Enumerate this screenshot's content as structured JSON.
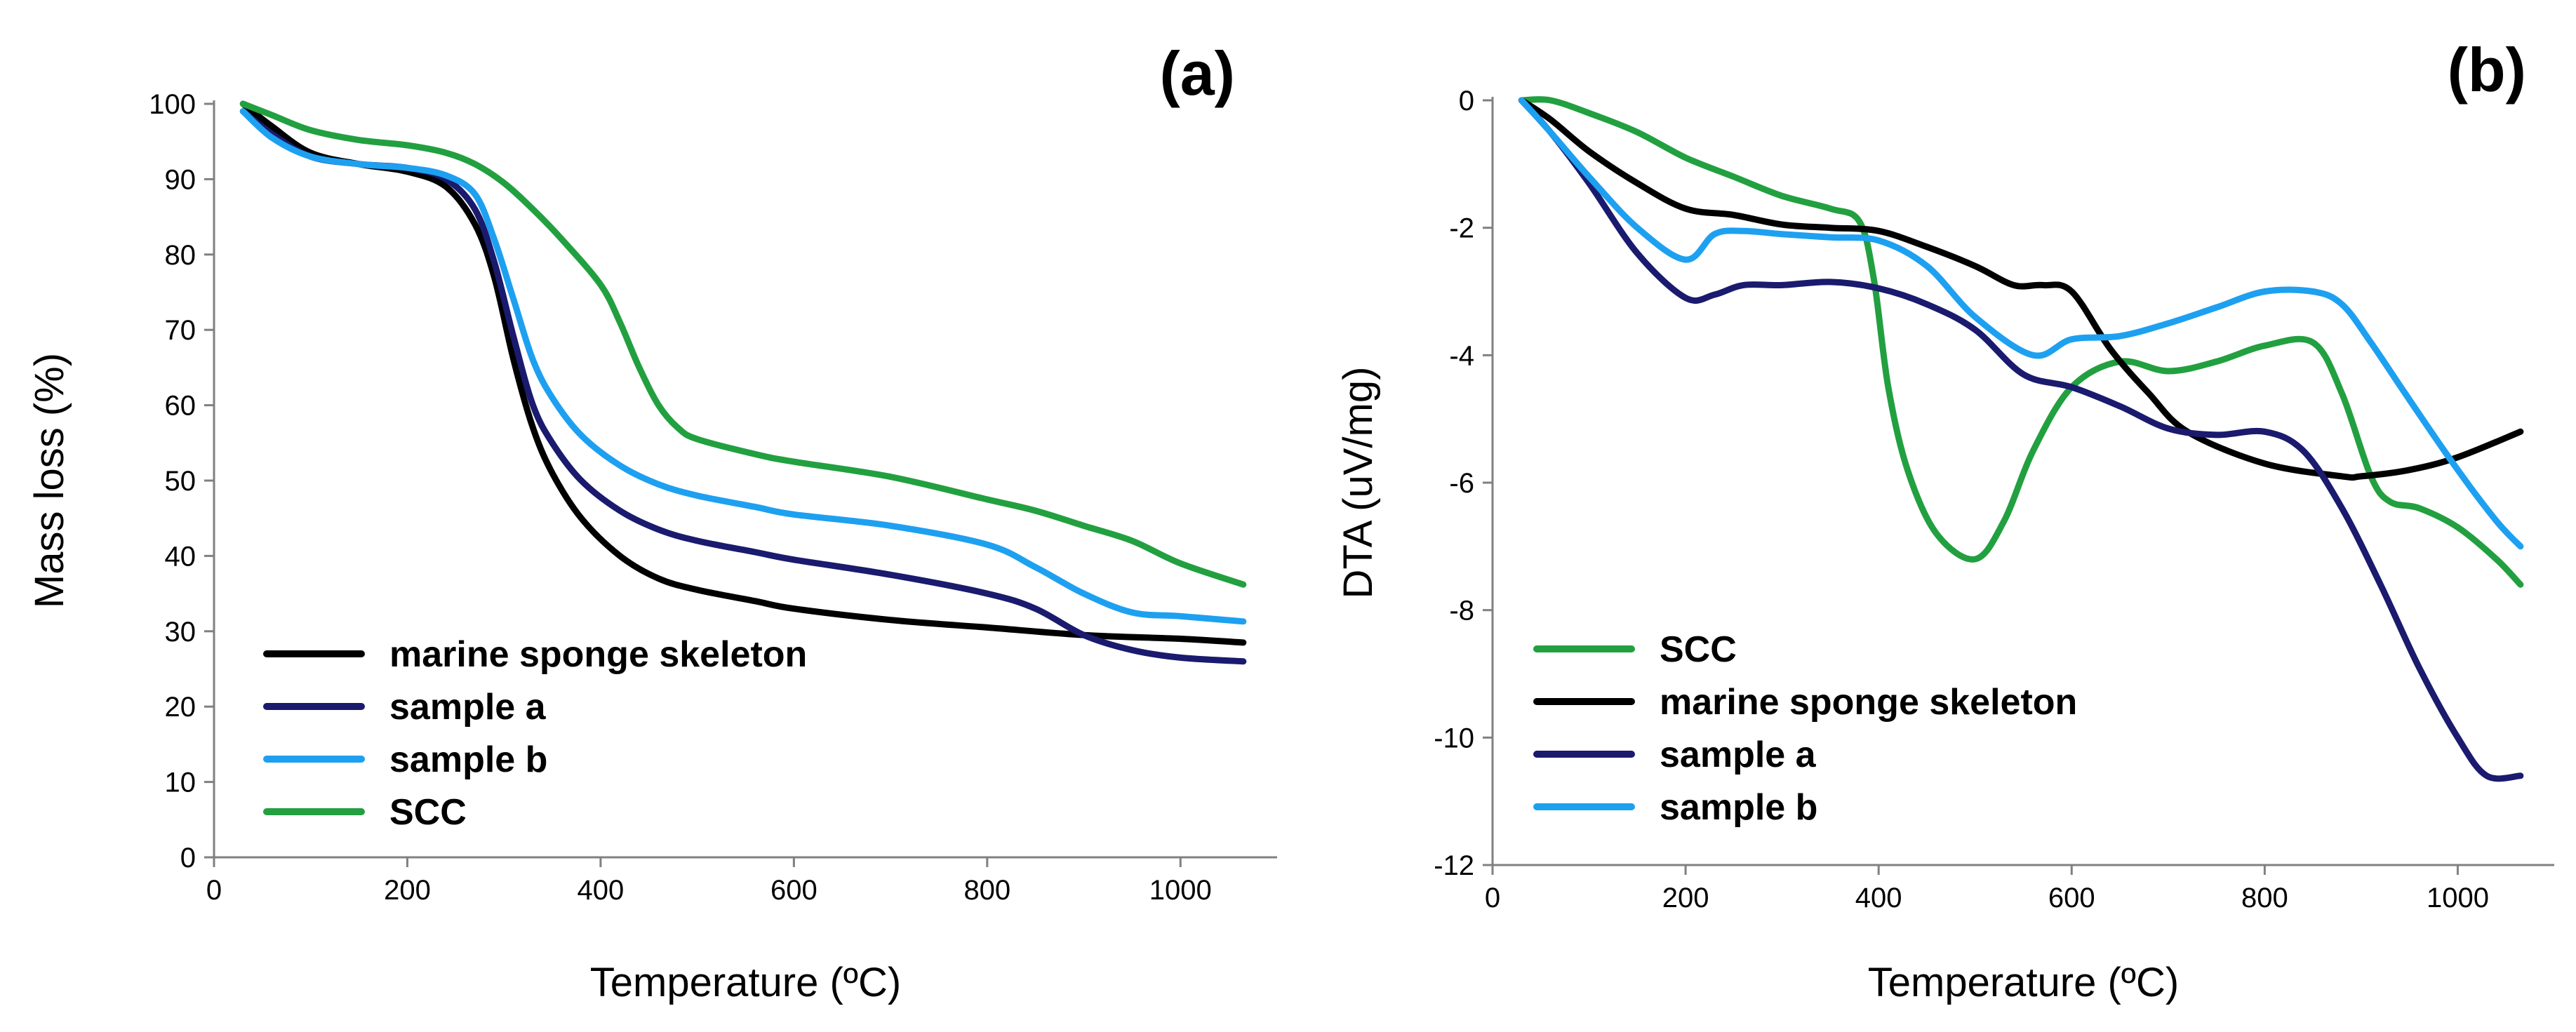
{
  "chart_data": [
    {
      "type": "line",
      "panel_label": "(a)",
      "xlabel": "Temperature (ºC)",
      "ylabel": "Mass loss (%)",
      "xlim": [
        0,
        1100
      ],
      "ylim": [
        0,
        100
      ],
      "x_ticks": [
        "0",
        "200",
        "400",
        "600",
        "800",
        "1000"
      ],
      "y_ticks": [
        "0",
        "10",
        "20",
        "30",
        "40",
        "50",
        "60",
        "70",
        "80",
        "90",
        "100"
      ],
      "grid": false,
      "legend_position": "lower-left",
      "legend_order": [
        "marine sponge skeleton",
        "sample a",
        "sample b",
        "SCC"
      ],
      "series": [
        {
          "name": "marine sponge skeleton",
          "color": "#000000",
          "x": [
            30,
            60,
            100,
            150,
            200,
            240,
            270,
            290,
            310,
            330,
            350,
            380,
            420,
            460,
            500,
            560,
            600,
            700,
            800,
            900,
            1000,
            1065
          ],
          "y": [
            100,
            97,
            93.5,
            92,
            91,
            89,
            84,
            77,
            66,
            57,
            51,
            45,
            40,
            37,
            35.5,
            34,
            33,
            31.5,
            30.5,
            29.5,
            29,
            28.5
          ]
        },
        {
          "name": "sample a",
          "color": "#1a1a6e",
          "x": [
            30,
            60,
            100,
            150,
            200,
            240,
            270,
            290,
            310,
            330,
            350,
            380,
            420,
            460,
            500,
            560,
            600,
            700,
            800,
            850,
            900,
            950,
            1000,
            1065
          ],
          "y": [
            99,
            96,
            93,
            92,
            91.5,
            90,
            86,
            79,
            69,
            60,
            55,
            50,
            46,
            43.5,
            42,
            40.5,
            39.5,
            37.5,
            35,
            33,
            29.5,
            27.5,
            26.5,
            26
          ]
        },
        {
          "name": "sample b",
          "color": "#1ea0f0",
          "x": [
            30,
            60,
            100,
            150,
            200,
            240,
            270,
            290,
            310,
            330,
            350,
            380,
            420,
            460,
            500,
            560,
            600,
            700,
            800,
            850,
            900,
            950,
            1000,
            1065
          ],
          "y": [
            99,
            95.5,
            93,
            92,
            91.5,
            90.5,
            88,
            82,
            74,
            66,
            61,
            56,
            52,
            49.5,
            48,
            46.5,
            45.5,
            44,
            41.5,
            38.5,
            35,
            32.5,
            32,
            31.3
          ]
        },
        {
          "name": "SCC",
          "color": "#22a040",
          "x": [
            30,
            60,
            100,
            150,
            200,
            240,
            270,
            300,
            330,
            360,
            400,
            420,
            440,
            460,
            480,
            500,
            560,
            600,
            700,
            800,
            850,
            900,
            950,
            1000,
            1065
          ],
          "y": [
            100,
            98.5,
            96.5,
            95.2,
            94.5,
            93.5,
            92,
            89.5,
            86,
            82,
            76,
            71,
            65,
            60,
            57,
            55.5,
            53.5,
            52.5,
            50.5,
            47.5,
            46,
            44,
            42,
            39,
            36.2
          ]
        }
      ]
    },
    {
      "type": "line",
      "panel_label": "(b)",
      "xlabel": "Temperature (ºC)",
      "ylabel": "DTA (uV/mg)",
      "xlim": [
        0,
        1100
      ],
      "ylim": [
        -12,
        0
      ],
      "x_ticks": [
        "0",
        "200",
        "400",
        "600",
        "800",
        "1000"
      ],
      "y_ticks": [
        "-12",
        "-10",
        "-8",
        "-6",
        "-4",
        "-2",
        "0"
      ],
      "grid": false,
      "legend_position": "lower-left",
      "legend_order": [
        "SCC",
        "marine sponge skeleton",
        "sample a",
        "sample b"
      ],
      "series": [
        {
          "name": "SCC",
          "color": "#22a040",
          "x": [
            30,
            60,
            100,
            150,
            200,
            250,
            300,
            350,
            380,
            395,
            410,
            430,
            460,
            500,
            530,
            560,
            600,
            650,
            700,
            750,
            800,
            850,
            880,
            910,
            930,
            960,
            1000,
            1040,
            1065
          ],
          "y": [
            0,
            0,
            -0.2,
            -0.5,
            -0.9,
            -1.2,
            -1.5,
            -1.7,
            -1.9,
            -2.8,
            -4.5,
            -5.8,
            -6.8,
            -7.2,
            -6.6,
            -5.5,
            -4.5,
            -4.1,
            -4.25,
            -4.1,
            -3.85,
            -3.8,
            -4.6,
            -5.9,
            -6.3,
            -6.4,
            -6.7,
            -7.2,
            -7.6
          ]
        },
        {
          "name": "marine sponge skeleton",
          "color": "#000000",
          "x": [
            30,
            60,
            100,
            150,
            200,
            250,
            300,
            350,
            400,
            450,
            500,
            540,
            570,
            600,
            640,
            680,
            720,
            800,
            880,
            900,
            950,
            1000,
            1065
          ],
          "y": [
            0,
            -0.3,
            -0.8,
            -1.3,
            -1.7,
            -1.8,
            -1.95,
            -2.0,
            -2.05,
            -2.3,
            -2.6,
            -2.9,
            -2.9,
            -3.0,
            -3.9,
            -4.6,
            -5.2,
            -5.7,
            -5.9,
            -5.9,
            -5.8,
            -5.6,
            -5.2
          ]
        },
        {
          "name": "sample a",
          "color": "#1a1a6e",
          "x": [
            30,
            60,
            100,
            150,
            200,
            230,
            260,
            300,
            350,
            400,
            450,
            500,
            550,
            600,
            650,
            700,
            750,
            800,
            840,
            880,
            920,
            960,
            1000,
            1030,
            1065
          ],
          "y": [
            0,
            -0.5,
            -1.3,
            -2.4,
            -3.1,
            -3.05,
            -2.9,
            -2.9,
            -2.85,
            -2.95,
            -3.2,
            -3.6,
            -4.3,
            -4.5,
            -4.8,
            -5.15,
            -5.25,
            -5.2,
            -5.5,
            -6.4,
            -7.6,
            -8.9,
            -10.0,
            -10.6,
            -10.6
          ]
        },
        {
          "name": "sample b",
          "color": "#1ea0f0",
          "x": [
            30,
            60,
            100,
            150,
            200,
            230,
            260,
            300,
            350,
            400,
            450,
            500,
            560,
            600,
            650,
            700,
            750,
            800,
            850,
            880,
            910,
            950,
            1000,
            1040,
            1065
          ],
          "y": [
            0,
            -0.5,
            -1.2,
            -2.0,
            -2.5,
            -2.1,
            -2.05,
            -2.1,
            -2.15,
            -2.2,
            -2.6,
            -3.4,
            -4.0,
            -3.75,
            -3.7,
            -3.5,
            -3.25,
            -3.0,
            -3.0,
            -3.2,
            -3.8,
            -4.7,
            -5.8,
            -6.6,
            -7.0
          ]
        }
      ]
    }
  ]
}
